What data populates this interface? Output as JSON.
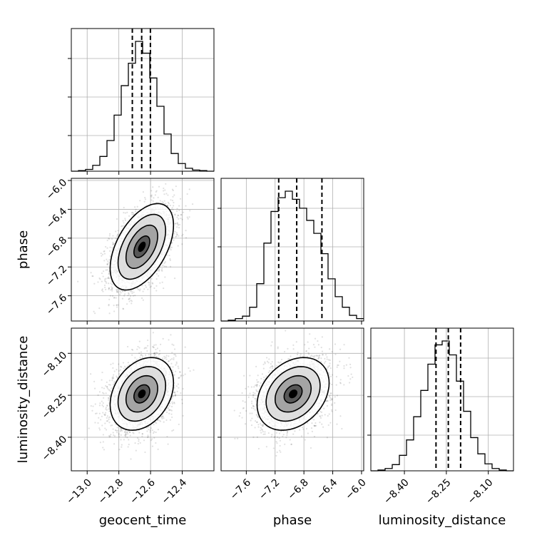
{
  "chart_data": {
    "type": "corner",
    "parameters": [
      "geocent_time",
      "phase",
      "luminosity_distance"
    ],
    "axes_labels": {
      "x": [
        "geocent_time",
        "phase",
        "luminosity_distance"
      ],
      "y": [
        "",
        "phase",
        "luminosity_distance"
      ]
    },
    "ranges": {
      "geocent_time": [
        -13.1,
        -12.2
      ],
      "phase": [
        -7.95,
        -5.97
      ],
      "luminosity_distance": [
        -8.52,
        -8.01
      ]
    },
    "ticks": {
      "geocent_time": {
        "values": [
          -13.0,
          -12.8,
          -12.6,
          -12.4
        ],
        "labels": [
          "−13.0",
          "−12.8",
          "−12.6",
          "−12.4"
        ]
      },
      "phase": {
        "values": [
          -7.6,
          -7.2,
          -6.8,
          -6.4,
          -6.0
        ],
        "labels": [
          "−7.6",
          "−7.2",
          "−6.8",
          "−6.4",
          "−6.0"
        ]
      },
      "luminosity_distance": {
        "values": [
          -8.4,
          -8.25,
          -8.1
        ],
        "labels": [
          "−8.40",
          "−8.25",
          "−8.10"
        ]
      }
    },
    "quantiles": {
      "geocent_time": [
        -12.715,
        -12.656,
        -12.601
      ],
      "phase": [
        -7.15,
        -6.9,
        -6.55
      ],
      "luminosity_distance": [
        -8.287,
        -8.243,
        -8.199
      ]
    },
    "histograms": {
      "geocent_time": {
        "bin_edges": [
          -13.1,
          -13.055,
          -13.01,
          -12.965,
          -12.92,
          -12.875,
          -12.83,
          -12.785,
          -12.74,
          -12.695,
          -12.65,
          -12.605,
          -12.56,
          -12.515,
          -12.47,
          -12.425,
          -12.38,
          -12.335,
          -12.29,
          -12.245,
          -12.2
        ],
        "counts": [
          0,
          1,
          3,
          10,
          25,
          52,
          95,
          145,
          183,
          220,
          200,
          158,
          110,
          63,
          30,
          13,
          5,
          2,
          1,
          0
        ]
      },
      "phase": {
        "bin_edges": [
          -7.95,
          -7.851,
          -7.752,
          -7.653,
          -7.554,
          -7.455,
          -7.356,
          -7.257,
          -7.158,
          -7.059,
          -6.96,
          -6.861,
          -6.762,
          -6.663,
          -6.564,
          -6.465,
          -6.366,
          -6.267,
          -6.168,
          -6.069,
          -5.97
        ],
        "counts": [
          0,
          1,
          3,
          6,
          17,
          46,
          96,
          135,
          152,
          160,
          150,
          139,
          124,
          108,
          83,
          52,
          30,
          17,
          7,
          3
        ]
      },
      "luminosity_distance": {
        "bin_edges": [
          -8.52,
          -8.4945,
          -8.469,
          -8.4435,
          -8.418,
          -8.3925,
          -8.367,
          -8.3415,
          -8.316,
          -8.2905,
          -8.265,
          -8.2395,
          -8.214,
          -8.1885,
          -8.163,
          -8.1375,
          -8.112,
          -8.0865,
          -8.061,
          -8.0355,
          -8.01
        ],
        "counts": [
          0,
          1,
          3,
          8,
          20,
          40,
          70,
          104,
          138,
          163,
          168,
          150,
          116,
          77,
          43,
          22,
          9,
          3,
          1,
          0
        ]
      }
    },
    "pairs": [
      {
        "x": "geocent_time",
        "y": "phase",
        "center": [
          -12.655,
          -6.92
        ],
        "sigma": [
          0.1,
          0.3
        ],
        "correlation": 0.5
      },
      {
        "x": "geocent_time",
        "y": "luminosity_distance",
        "center": [
          -12.655,
          -8.245
        ],
        "sigma": [
          0.1,
          0.065
        ],
        "correlation": 0.3
      },
      {
        "x": "phase",
        "y": "luminosity_distance",
        "center": [
          -6.95,
          -8.245
        ],
        "sigma": [
          0.25,
          0.065
        ],
        "correlation": 0.3
      }
    ],
    "contour_levels_sigma": [
      0.5,
      1.0,
      1.5,
      2.0
    ],
    "grid": true,
    "colors": {
      "line": "#000000",
      "grid": "#b0b0b0",
      "points": "#000000"
    }
  }
}
